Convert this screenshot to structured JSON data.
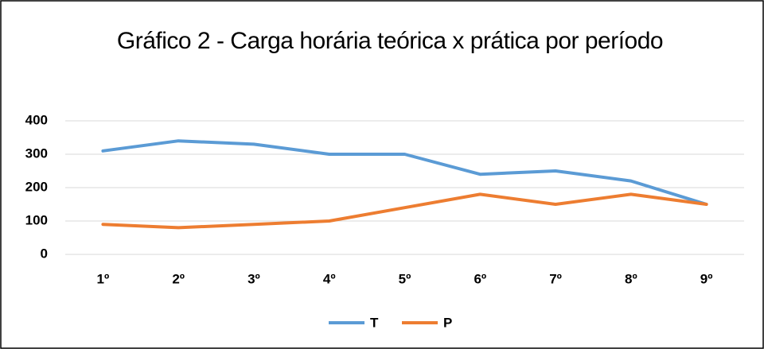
{
  "chart_data": {
    "type": "line",
    "title": "Gráfico 2 - Carga horária teórica x prática por período",
    "categories": [
      "1º",
      "2º",
      "3º",
      "4º",
      "5º",
      "6º",
      "7º",
      "8º",
      "9º"
    ],
    "series": [
      {
        "name": "T",
        "color": "#5b9bd5",
        "values": [
          310,
          340,
          330,
          300,
          300,
          240,
          250,
          220,
          150
        ]
      },
      {
        "name": "P",
        "color": "#ed7d31",
        "values": [
          90,
          80,
          90,
          100,
          140,
          180,
          150,
          180,
          150
        ]
      }
    ],
    "ylim": [
      0,
      400
    ],
    "yticks": [
      0,
      100,
      200,
      300,
      400
    ],
    "grid": true,
    "legend": "bottom"
  }
}
